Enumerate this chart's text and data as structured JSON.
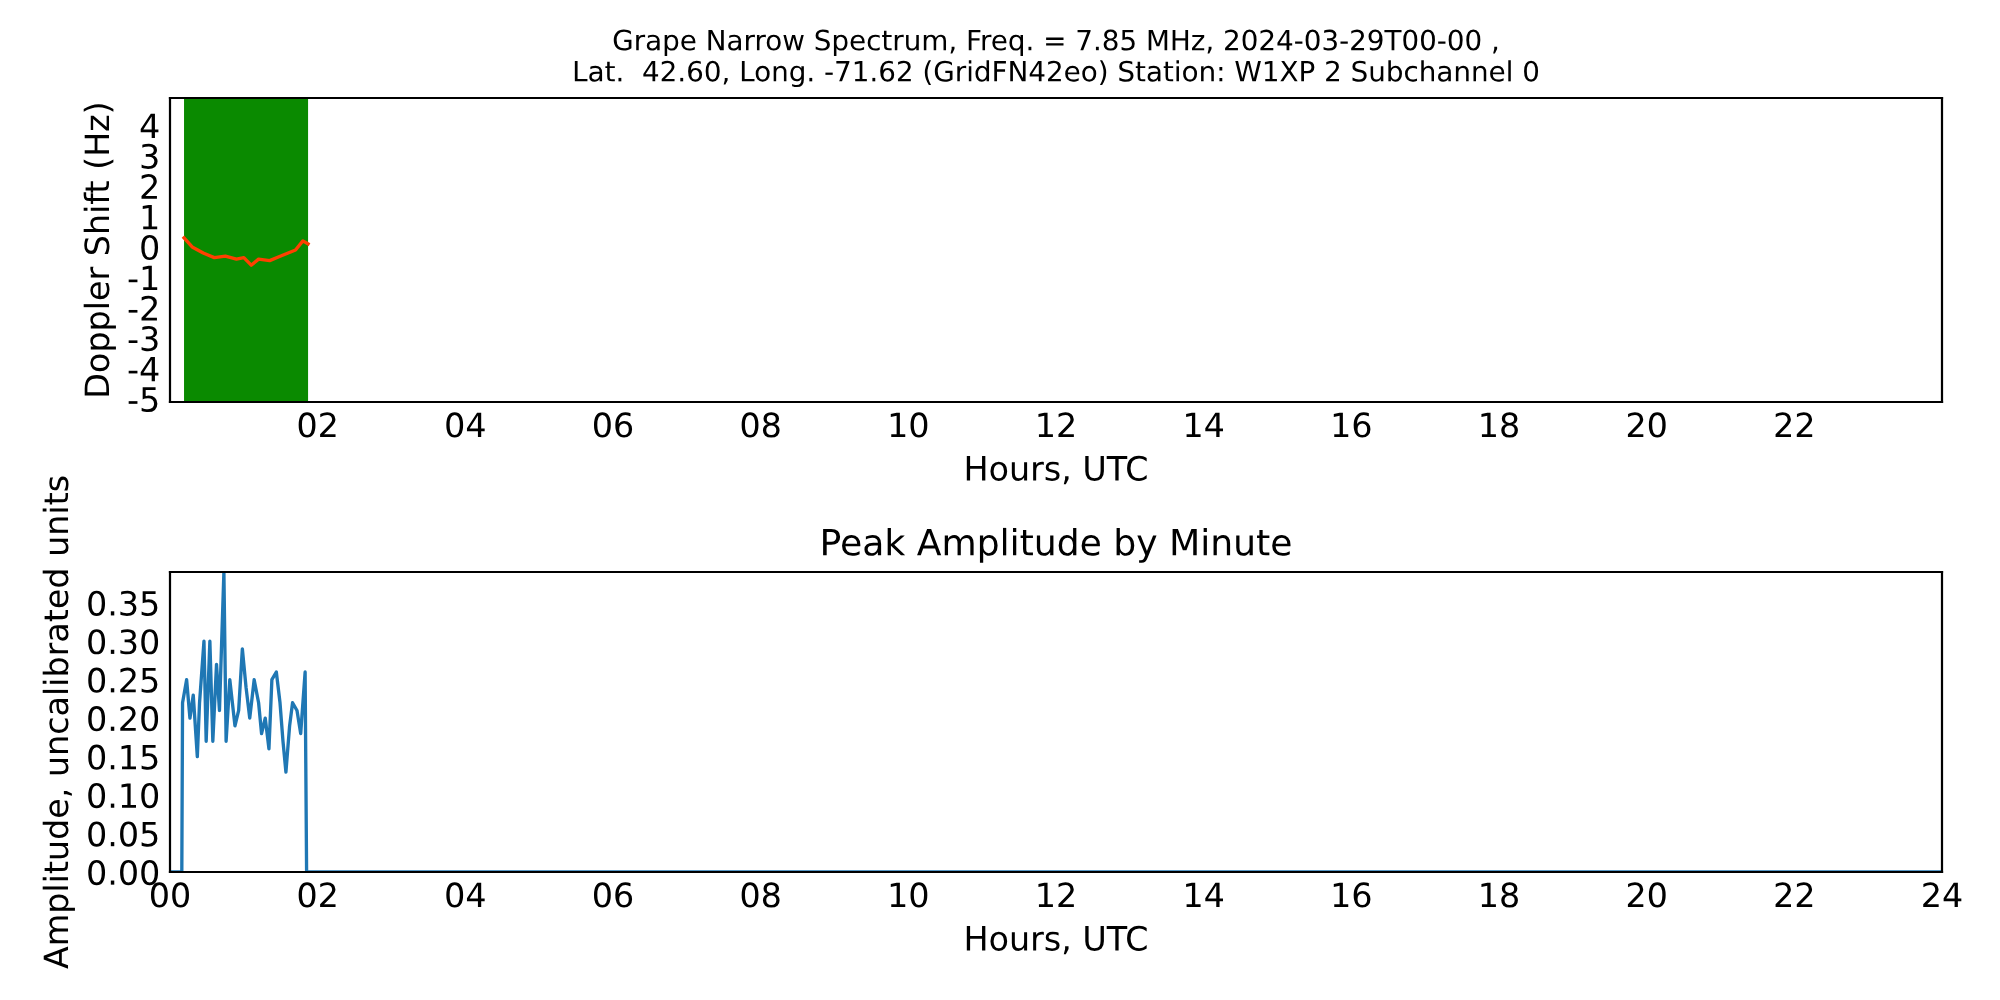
{
  "chart_data": [
    {
      "type": "line",
      "title": "Grape Narrow Spectrum, Freq. = 7.85 MHz, 2024-03-29T00-00 ,\nLat.  42.60, Long. -71.62 (GridFN42eo) Station: W1XP 2 Subchannel 0",
      "xlabel": "Hours, UTC",
      "ylabel": "Doppler Shift (Hz)",
      "xlim": [
        0,
        24
      ],
      "ylim": [
        -5.1,
        4.9
      ],
      "xticks": [
        {
          "value": 2,
          "label": "02"
        },
        {
          "value": 4,
          "label": "04"
        },
        {
          "value": 6,
          "label": "06"
        },
        {
          "value": 8,
          "label": "08"
        },
        {
          "value": 10,
          "label": "10"
        },
        {
          "value": 12,
          "label": "12"
        },
        {
          "value": 14,
          "label": "14"
        },
        {
          "value": 16,
          "label": "16"
        },
        {
          "value": 18,
          "label": "18"
        },
        {
          "value": 20,
          "label": "20"
        },
        {
          "value": 22,
          "label": "22"
        }
      ],
      "yticks": [
        {
          "value": -5,
          "label": "-5"
        },
        {
          "value": -4,
          "label": "-4"
        },
        {
          "value": -3,
          "label": "-3"
        },
        {
          "value": -2,
          "label": "-2"
        },
        {
          "value": -1,
          "label": "-1"
        },
        {
          "value": 0,
          "label": "0"
        },
        1,
        2,
        3,
        4
      ],
      "bands": [
        {
          "axis": "x",
          "from": 0.19,
          "to": 1.87,
          "color": "#0a8a00"
        }
      ],
      "series": [
        {
          "color": "#ff4000",
          "x": [
            0.19,
            0.3,
            0.45,
            0.6,
            0.75,
            0.9,
            1.0,
            1.1,
            1.2,
            1.35,
            1.5,
            1.6,
            1.7,
            1.8,
            1.87
          ],
          "values": [
            0.3,
            0.0,
            -0.2,
            -0.35,
            -0.3,
            -0.4,
            -0.35,
            -0.6,
            -0.4,
            -0.45,
            -0.3,
            -0.2,
            -0.1,
            0.2,
            0.1
          ]
        }
      ]
    },
    {
      "type": "line",
      "title": "Peak Amplitude by Minute",
      "xlabel": "Hours, UTC",
      "ylabel": "Amplitude, uncalibrated units",
      "xlim": [
        0,
        24
      ],
      "ylim": [
        0,
        0.39
      ],
      "xticks": [
        {
          "value": 0,
          "label": "00"
        },
        {
          "value": 2,
          "label": "02"
        },
        {
          "value": 4,
          "label": "04"
        },
        {
          "value": 6,
          "label": "06"
        },
        {
          "value": 8,
          "label": "08"
        },
        {
          "value": 10,
          "label": "10"
        },
        {
          "value": 12,
          "label": "12"
        },
        {
          "value": 14,
          "label": "14"
        },
        {
          "value": 16,
          "label": "16"
        },
        {
          "value": 18,
          "label": "18"
        },
        {
          "value": 20,
          "label": "20"
        },
        {
          "value": 22,
          "label": "22"
        },
        {
          "value": 24,
          "label": "24"
        }
      ],
      "yticks": [
        {
          "value": 0,
          "label": "0.00"
        },
        {
          "value": 0.05,
          "label": "0.05"
        },
        {
          "value": 0.1,
          "label": "0.10"
        },
        {
          "value": 0.15,
          "label": "0.15"
        },
        {
          "value": 0.2,
          "label": "0.20"
        },
        {
          "value": 0.25,
          "label": "0.25"
        },
        {
          "value": 0.3,
          "label": "0.30"
        },
        {
          "value": 0.35,
          "label": "0.35"
        }
      ],
      "series": [
        {
          "color": "#1f77b4",
          "x": [
            0,
            0.16,
            0.17,
            0.225,
            0.27,
            0.315,
            0.37,
            0.4,
            0.46,
            0.49,
            0.54,
            0.58,
            0.63,
            0.67,
            0.73,
            0.76,
            0.81,
            0.88,
            0.93,
            0.98,
            1.03,
            1.08,
            1.14,
            1.2,
            1.24,
            1.29,
            1.34,
            1.38,
            1.44,
            1.49,
            1.53,
            1.57,
            1.62,
            1.66,
            1.72,
            1.77,
            1.83,
            1.85,
            24
          ],
          "values": [
            0,
            0,
            0.22,
            0.25,
            0.2,
            0.23,
            0.15,
            0.22,
            0.3,
            0.17,
            0.3,
            0.17,
            0.27,
            0.21,
            0.39,
            0.17,
            0.25,
            0.19,
            0.21,
            0.29,
            0.24,
            0.2,
            0.25,
            0.22,
            0.18,
            0.2,
            0.16,
            0.25,
            0.26,
            0.22,
            0.17,
            0.13,
            0.19,
            0.22,
            0.21,
            0.18,
            0.26,
            0,
            0
          ]
        }
      ]
    }
  ]
}
